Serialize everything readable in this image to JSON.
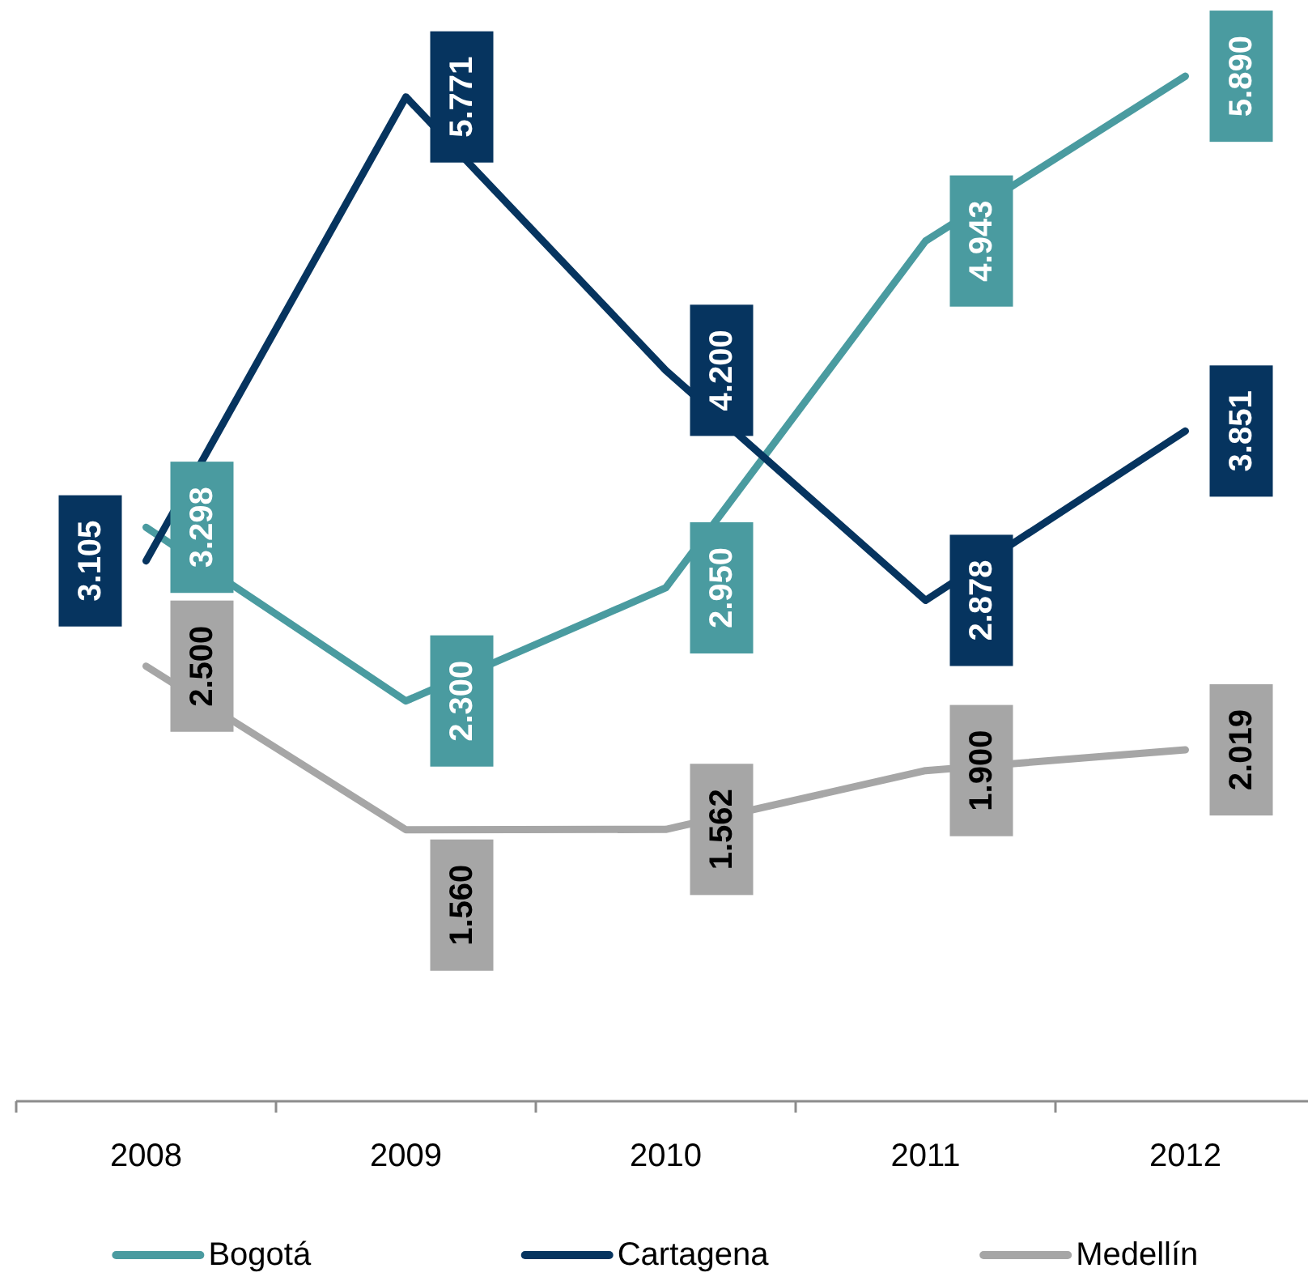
{
  "chart_data": {
    "type": "line",
    "categories": [
      "2008",
      "2009",
      "2010",
      "2011",
      "2012"
    ],
    "series": [
      {
        "name": "Bogotá",
        "color": "#4a9ba0",
        "values": [
          3.298,
          2.3,
          2.95,
          4.943,
          5.89
        ],
        "value_labels": [
          "3.298",
          "2.300",
          "2.950",
          "4.943",
          "5.890"
        ]
      },
      {
        "name": "Cartagena",
        "color": "#06345f",
        "values": [
          3.105,
          5.771,
          4.2,
          2.878,
          3.851
        ],
        "value_labels": [
          "3.105",
          "5.771",
          "4.200",
          "2.878",
          "3.851"
        ]
      },
      {
        "name": "Medellín",
        "color": "#a6a6a6",
        "values": [
          2.5,
          1.56,
          1.562,
          1.9,
          2.019
        ],
        "value_labels": [
          "2.500",
          "1.560",
          "1.562",
          "1.900",
          "2.019"
        ]
      }
    ],
    "ylim": [
      0,
      6.3
    ],
    "tick_labels": "x",
    "legend": "bottom"
  }
}
